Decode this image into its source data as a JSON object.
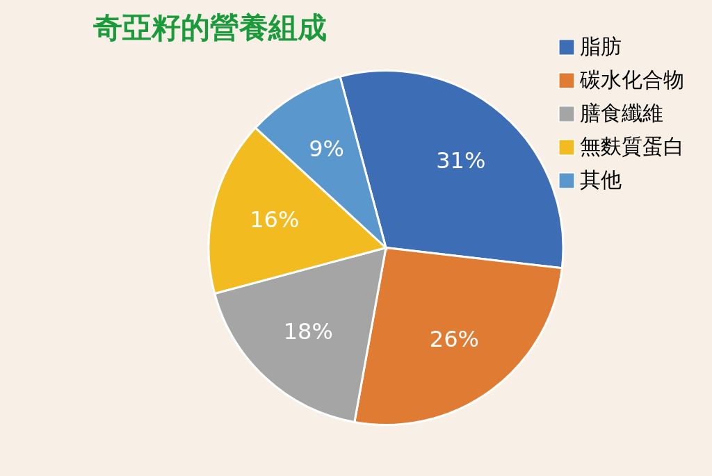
{
  "chart_data": {
    "type": "pie",
    "title": "奇亞籽的營養組成",
    "categories": [
      "脂肪",
      "碳水化合物",
      "膳食纖維",
      "無麩質蛋白",
      "其他"
    ],
    "values": [
      31,
      26,
      18,
      16,
      9
    ],
    "value_labels": [
      "31%",
      "26%",
      "18%",
      "16%",
      "9%"
    ],
    "colors": [
      "#3d6db5",
      "#e07b33",
      "#a5a5a5",
      "#f2bb1f",
      "#5a97cc"
    ],
    "legend": "right"
  }
}
